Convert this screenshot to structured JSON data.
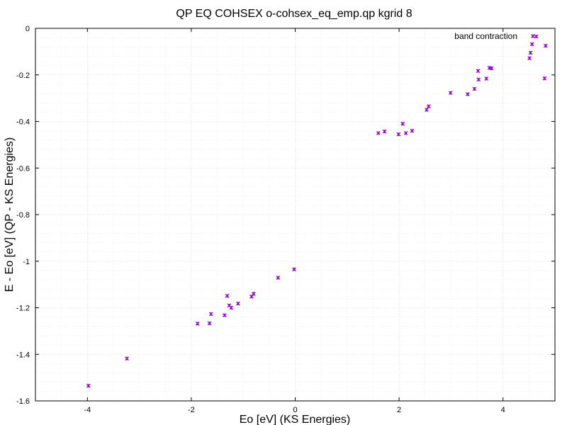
{
  "chart_data": {
    "type": "scatter",
    "title": "QP EQ COHSEX o-cohsex_eq_emp.qp kgrid 8",
    "xlabel": "Eo [eV] (KS Energies)",
    "ylabel": "E - Eo [eV] (QP - KS Energies)",
    "xlim": [
      -5,
      5
    ],
    "ylim": [
      -1.6,
      0
    ],
    "xticks": [
      -4,
      -2,
      0,
      2,
      4
    ],
    "xtick_labels": [
      "-4",
      "-2",
      "0",
      "2",
      "4"
    ],
    "yticks": [
      0,
      -0.2,
      -0.4,
      -0.6,
      -0.8,
      -1,
      -1.2,
      -1.4,
      -1.6
    ],
    "ytick_labels": [
      "0",
      "-0.2",
      "-0.4",
      "-0.6",
      "-0.8",
      "-1",
      "-1.2",
      "-1.4",
      "-1.6"
    ],
    "grid": true,
    "legend_position": "top-right",
    "marker_color": "#9400d3",
    "series": [
      {
        "name": "band contraction",
        "points": [
          [
            -3.98,
            -1.535
          ],
          [
            -3.24,
            -1.418
          ],
          [
            -1.88,
            -1.268
          ],
          [
            -1.65,
            -1.267
          ],
          [
            -1.62,
            -1.227
          ],
          [
            -1.36,
            -1.232
          ],
          [
            -1.31,
            -1.149
          ],
          [
            -1.27,
            -1.19
          ],
          [
            -1.23,
            -1.2
          ],
          [
            -1.1,
            -1.182
          ],
          [
            -0.84,
            -1.152
          ],
          [
            -0.8,
            -1.14
          ],
          [
            -0.33,
            -1.071
          ],
          [
            -0.02,
            -1.035
          ],
          [
            1.6,
            -0.45
          ],
          [
            1.72,
            -0.443
          ],
          [
            1.99,
            -0.455
          ],
          [
            2.07,
            -0.41
          ],
          [
            2.13,
            -0.45
          ],
          [
            2.25,
            -0.44
          ],
          [
            2.53,
            -0.35
          ],
          [
            2.57,
            -0.335
          ],
          [
            2.99,
            -0.277
          ],
          [
            3.32,
            -0.283
          ],
          [
            3.45,
            -0.26
          ],
          [
            3.52,
            -0.183
          ],
          [
            3.53,
            -0.22
          ],
          [
            3.68,
            -0.216
          ],
          [
            3.74,
            -0.17
          ],
          [
            3.78,
            -0.172
          ],
          [
            4.51,
            -0.128
          ],
          [
            4.53,
            -0.105
          ],
          [
            4.56,
            -0.068
          ],
          [
            4.64,
            -0.035
          ],
          [
            4.82,
            -0.075
          ],
          [
            4.8,
            -0.215
          ]
        ]
      }
    ]
  }
}
